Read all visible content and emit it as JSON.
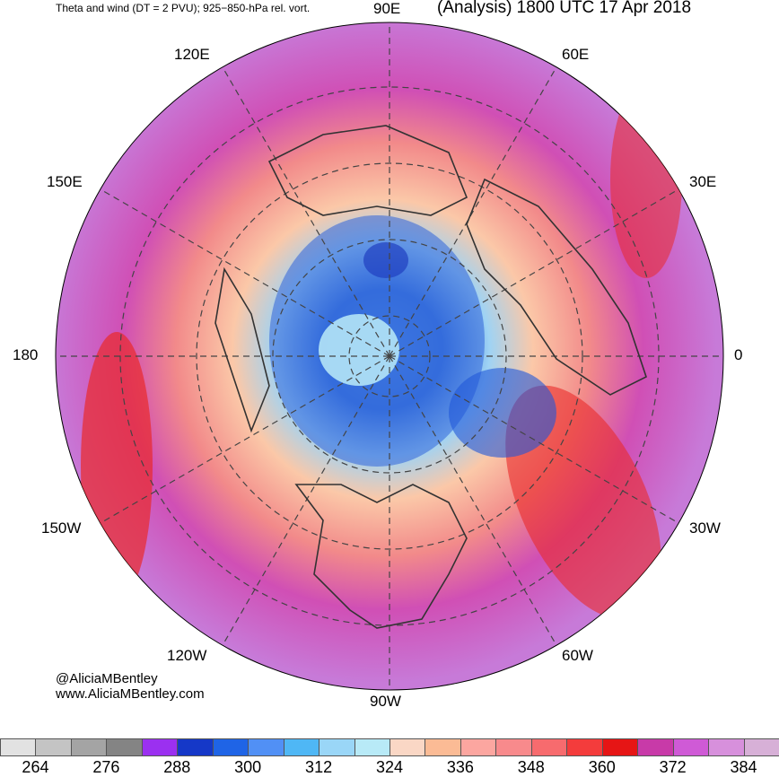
{
  "header": {
    "left_title": "Theta and wind (DT = 2 PVU); 925−850-hPa rel. vort.",
    "right_title": "(Analysis) 1800 UTC 17 Apr 2018"
  },
  "longitude_labels": [
    "90E",
    "60E",
    "30E",
    "0",
    "30W",
    "60W",
    "90W",
    "120W",
    "150W",
    "180",
    "150E",
    "120E"
  ],
  "credits": {
    "handle": "@AliciaMBentley",
    "website": "www.AliciaMBentley.com"
  },
  "colorbar": {
    "colors": [
      "#e2e2e2",
      "#c4c4c4",
      "#a4a4a4",
      "#848484",
      "#9b30f0",
      "#1538c8",
      "#1f64e6",
      "#5190f5",
      "#4fb7f5",
      "#9ad6f7",
      "#b8eaf7",
      "#fad7c5",
      "#fbbb95",
      "#fca6a0",
      "#f88a8c",
      "#f76b6e",
      "#f43c3c",
      "#e61515",
      "#c83aa8",
      "#cf5ad6",
      "#d790dc",
      "#d7b0d7"
    ],
    "tick_labels": [
      "264",
      "276",
      "288",
      "300",
      "312",
      "324",
      "336",
      "348",
      "360",
      "372",
      "384"
    ]
  }
}
